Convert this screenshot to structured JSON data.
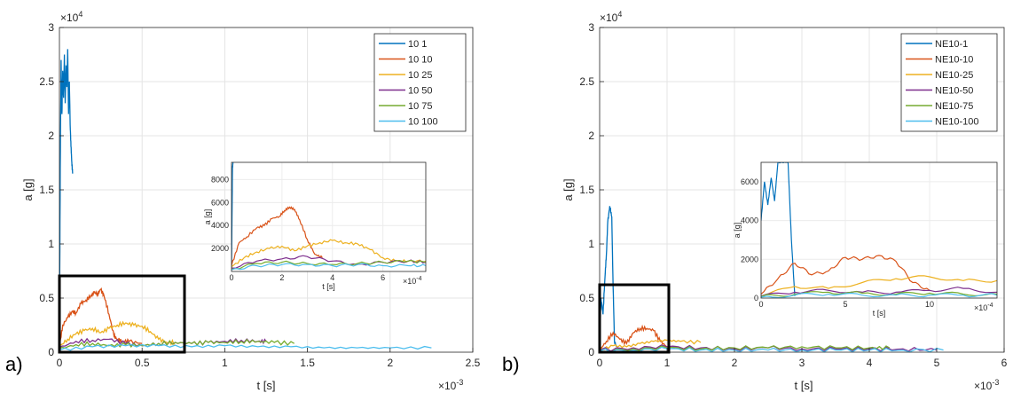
{
  "panels": [
    {
      "panel_label": "a)",
      "exponent_y": "×10",
      "exponent_y_pow": "4",
      "exponent_x": "×10",
      "exponent_x_pow": "-3",
      "inset_exponent_x": "×10",
      "inset_exponent_x_pow": "-4",
      "xlabel": "t [s]",
      "ylabel": "a [g]",
      "inset_xlabel": "t [s]",
      "inset_ylabel": "a [g]"
    },
    {
      "panel_label": "b)",
      "exponent_y": "×10",
      "exponent_y_pow": "4",
      "exponent_x": "×10",
      "exponent_x_pow": "-3",
      "inset_exponent_x": "×10",
      "inset_exponent_x_pow": "-4",
      "xlabel": "t [s]",
      "ylabel": "a [g]",
      "inset_xlabel": "t [s]",
      "inset_ylabel": "a [g]"
    }
  ],
  "chart_data": [
    {
      "type": "line",
      "xlabel": "t [s]",
      "ylabel": "a [g]",
      "xlim": [
        0,
        2.5
      ],
      "ylim": [
        0,
        3
      ],
      "x_ticks": [
        "0",
        "0.5",
        "1",
        "1.5",
        "2",
        "2.5"
      ],
      "y_ticks": [
        "0",
        "0.5",
        "1",
        "1.5",
        "2",
        "2.5",
        "3"
      ],
      "grid": true,
      "legend_position": "top-right",
      "series": [
        {
          "name": "10  1",
          "color": "#0072BD",
          "x": [
            0,
            0.005,
            0.01,
            0.015,
            0.02,
            0.025,
            0.03,
            0.035,
            0.04,
            0.045,
            0.05,
            0.055,
            0.06,
            0.065,
            0.07,
            0.075,
            0.08
          ],
          "y": [
            0.2,
            1.7,
            2.7,
            2.2,
            2.6,
            2.35,
            2.75,
            2.3,
            2.65,
            2.45,
            2.8,
            2.2,
            2.5,
            2.1,
            1.9,
            1.75,
            1.65
          ]
        },
        {
          "name": "10  10",
          "color": "#D95319",
          "x": [
            0,
            0.02,
            0.05,
            0.08,
            0.1,
            0.13,
            0.16,
            0.19,
            0.21,
            0.23,
            0.25,
            0.27,
            0.3,
            0.33,
            0.35,
            0.38,
            0.42,
            0.5
          ],
          "y": [
            0.05,
            0.25,
            0.32,
            0.38,
            0.36,
            0.45,
            0.48,
            0.52,
            0.55,
            0.54,
            0.58,
            0.52,
            0.35,
            0.15,
            0.12,
            0.1,
            0.1,
            0.08
          ]
        },
        {
          "name": "10  25",
          "color": "#EDB120",
          "x": [
            0,
            0.05,
            0.1,
            0.15,
            0.2,
            0.25,
            0.3,
            0.35,
            0.4,
            0.45,
            0.5,
            0.55,
            0.6,
            0.65,
            0.7
          ],
          "y": [
            0.05,
            0.12,
            0.17,
            0.2,
            0.22,
            0.18,
            0.22,
            0.25,
            0.27,
            0.25,
            0.24,
            0.19,
            0.12,
            0.09,
            0.09
          ]
        },
        {
          "name": "10  50",
          "color": "#7E2F8E",
          "x": [
            0,
            0.1,
            0.2,
            0.3,
            0.4,
            0.5,
            0.6,
            0.7,
            0.8,
            0.9,
            1.0,
            1.1,
            1.2,
            1.25
          ],
          "y": [
            0.04,
            0.1,
            0.11,
            0.12,
            0.08,
            0.06,
            0.08,
            0.09,
            0.08,
            0.09,
            0.1,
            0.11,
            0.1,
            0.1
          ]
        },
        {
          "name": "10  75",
          "color": "#77AC30",
          "x": [
            0,
            0.1,
            0.2,
            0.3,
            0.4,
            0.5,
            0.6,
            0.7,
            0.8,
            0.9,
            1.0,
            1.1,
            1.2,
            1.3,
            1.42
          ],
          "y": [
            0.03,
            0.07,
            0.08,
            0.06,
            0.07,
            0.06,
            0.08,
            0.09,
            0.08,
            0.09,
            0.09,
            0.1,
            0.1,
            0.09,
            0.08
          ]
        },
        {
          "name": "10  100",
          "color": "#4DBEEE",
          "x": [
            0,
            0.2,
            0.4,
            0.6,
            0.8,
            1.0,
            1.2,
            1.4,
            1.6,
            1.8,
            2.0,
            2.25
          ],
          "y": [
            0.02,
            0.05,
            0.06,
            0.06,
            0.05,
            0.06,
            0.05,
            0.05,
            0.04,
            0.04,
            0.04,
            0.04
          ]
        }
      ],
      "inset": {
        "xlim": [
          0,
          7.7
        ],
        "ylim": [
          0,
          9500
        ],
        "x_ticks": [
          "0",
          "2",
          "4",
          "6"
        ],
        "y_ticks": [
          "2000",
          "4000",
          "6000",
          "8000"
        ],
        "series": [
          {
            "color": "#0072BD",
            "x": [
              0,
              0.02,
              0.04,
              0.06
            ],
            "y": [
              300,
              5000,
              9000,
              9500
            ]
          },
          {
            "color": "#D95319",
            "x": [
              0,
              0.3,
              0.6,
              1.0,
              1.3,
              1.6,
              1.9,
              2.1,
              2.3,
              2.5,
              2.7,
              3.0,
              3.3,
              3.6
            ],
            "y": [
              500,
              2500,
              3000,
              3800,
              4000,
              4600,
              4800,
              5300,
              5600,
              5400,
              4500,
              2800,
              1500,
              1200
            ]
          },
          {
            "color": "#EDB120",
            "x": [
              0,
              0.5,
              1.0,
              1.5,
              2.0,
              2.5,
              3.0,
              3.5,
              4.0,
              4.5,
              5.0,
              5.5,
              6.0,
              6.5,
              7.0,
              7.7
            ],
            "y": [
              400,
              1200,
              1700,
              2000,
              2200,
              1800,
              2200,
              2500,
              2700,
              2500,
              2400,
              1900,
              1200,
              900,
              900,
              900
            ]
          },
          {
            "color": "#7E2F8E",
            "x": [
              0,
              1,
              2,
              3,
              4,
              5,
              6,
              7,
              7.7
            ],
            "y": [
              300,
              900,
              1100,
              1300,
              900,
              600,
              800,
              900,
              800
            ]
          },
          {
            "color": "#77AC30",
            "x": [
              0,
              1,
              2,
              3,
              4,
              5,
              6,
              7,
              7.7
            ],
            "y": [
              200,
              700,
              800,
              700,
              600,
              700,
              800,
              900,
              800
            ]
          },
          {
            "color": "#4DBEEE",
            "x": [
              0,
              1,
              2,
              3,
              4,
              5,
              6,
              7,
              7.7
            ],
            "y": [
              150,
              500,
              600,
              600,
              500,
              600,
              500,
              500,
              500
            ]
          }
        ]
      },
      "highlight_box": {
        "x": [
          0,
          0.75
        ],
        "y": [
          0,
          0.7
        ]
      }
    },
    {
      "type": "line",
      "xlabel": "t [s]",
      "ylabel": "a [g]",
      "xlim": [
        0,
        6
      ],
      "ylim": [
        0,
        3
      ],
      "x_ticks": [
        "0",
        "1",
        "2",
        "3",
        "4",
        "5",
        "6"
      ],
      "y_ticks": [
        "0",
        "0.5",
        "1",
        "1.5",
        "2",
        "2.5",
        "3"
      ],
      "grid": true,
      "legend_position": "top-right",
      "series": [
        {
          "name": "NE10-1",
          "color": "#0072BD",
          "x": [
            0,
            0.02,
            0.05,
            0.08,
            0.1,
            0.12,
            0.15,
            0.18,
            0.2,
            0.22,
            0.25
          ],
          "y": [
            0.1,
            0.5,
            0.35,
            0.7,
            0.9,
            1.2,
            1.35,
            1.25,
            0.6,
            0.1,
            0.05
          ]
        },
        {
          "name": "NE10-10",
          "color": "#D95319",
          "x": [
            0,
            0.1,
            0.2,
            0.3,
            0.4,
            0.5,
            0.6,
            0.7,
            0.8,
            0.9,
            1.0,
            1.2
          ],
          "y": [
            0.02,
            0.1,
            0.18,
            0.12,
            0.08,
            0.18,
            0.22,
            0.22,
            0.2,
            0.1,
            0.05,
            0.04
          ]
        },
        {
          "name": "NE10-25",
          "color": "#EDB120",
          "x": [
            0,
            0.2,
            0.4,
            0.6,
            0.8,
            1.0,
            1.2,
            1.5
          ],
          "y": [
            0.02,
            0.06,
            0.05,
            0.08,
            0.1,
            0.11,
            0.1,
            0.09
          ]
        },
        {
          "name": "NE10-50",
          "color": "#7E2F8E",
          "x": [
            0,
            0.5,
            1.0,
            1.5,
            2.0,
            2.5,
            3.0,
            3.5,
            4.0,
            4.5,
            5.0
          ],
          "y": [
            0.02,
            0.04,
            0.05,
            0.04,
            0.03,
            0.04,
            0.03,
            0.03,
            0.03,
            0.03,
            0.02
          ]
        },
        {
          "name": "NE10-75",
          "color": "#77AC30",
          "x": [
            0,
            0.5,
            1.0,
            1.5,
            2.0,
            2.5,
            3.0,
            3.5,
            4.0,
            4.3
          ],
          "y": [
            0.01,
            0.03,
            0.04,
            0.03,
            0.04,
            0.04,
            0.05,
            0.04,
            0.04,
            0.04
          ]
        },
        {
          "name": "NE10-100",
          "color": "#4DBEEE",
          "x": [
            0,
            0.5,
            1.0,
            1.5,
            2.0,
            2.5,
            3.0,
            3.5,
            4.0,
            4.5,
            5.1
          ],
          "y": [
            0.01,
            0.02,
            0.03,
            0.02,
            0.02,
            0.02,
            0.02,
            0.02,
            0.02,
            0.02,
            0.02
          ]
        }
      ],
      "inset": {
        "xlim": [
          0,
          14
        ],
        "ylim": [
          0,
          7000
        ],
        "x_ticks": [
          "0",
          "5",
          "10"
        ],
        "y_ticks": [
          "0",
          "2000",
          "4000",
          "6000"
        ],
        "series": [
          {
            "color": "#0072BD",
            "x": [
              0,
              0.2,
              0.4,
              0.6,
              0.8,
              1.0,
              1.2,
              1.4,
              1.6,
              1.8,
              2.0
            ],
            "y": [
              4000,
              6000,
              4800,
              6200,
              5000,
              7000,
              7000,
              7000,
              7000,
              3000,
              100
            ]
          },
          {
            "color": "#D95319",
            "x": [
              0,
              1,
              2,
              3,
              4,
              5,
              6,
              7,
              8,
              9,
              10
            ],
            "y": [
              200,
              1000,
              1800,
              1200,
              1400,
              2100,
              2000,
              2200,
              1900,
              800,
              400
            ]
          },
          {
            "color": "#EDB120",
            "x": [
              0,
              2,
              4,
              6,
              8,
              10,
              12,
              14
            ],
            "y": [
              100,
              600,
              500,
              800,
              1000,
              1100,
              900,
              900
            ]
          },
          {
            "color": "#7E2F8E",
            "x": [
              0,
              2,
              4,
              6,
              8,
              10,
              12,
              14
            ],
            "y": [
              100,
              300,
              400,
              300,
              300,
              400,
              500,
              300
            ]
          },
          {
            "color": "#77AC30",
            "x": [
              0,
              2,
              4,
              6,
              8,
              10,
              12,
              14
            ],
            "y": [
              80,
              200,
              300,
              250,
              200,
              250,
              200,
              200
            ]
          },
          {
            "color": "#4DBEEE",
            "x": [
              0,
              2,
              4,
              6,
              8,
              10,
              12,
              14
            ],
            "y": [
              50,
              150,
              200,
              150,
              150,
              150,
              150,
              150
            ]
          }
        ]
      },
      "highlight_box": {
        "x": [
          0,
          1.0
        ],
        "y": [
          0,
          0.62
        ]
      }
    }
  ]
}
